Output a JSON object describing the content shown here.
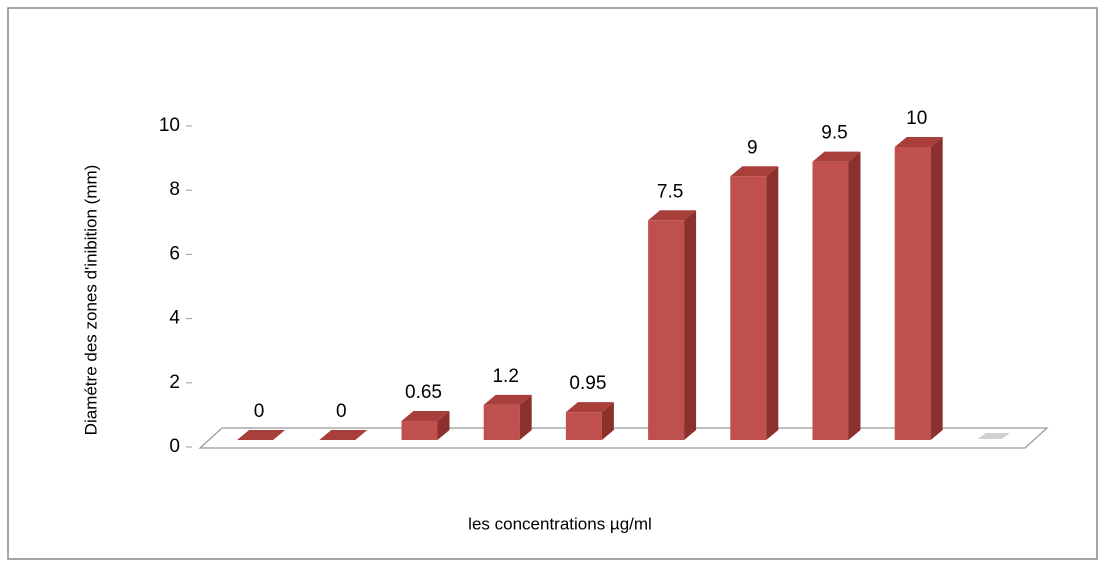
{
  "chart_data": {
    "type": "bar",
    "x_label": "les concentrations µg/ml",
    "y_label": "Diamétre des zones d'inibition (mm)",
    "categories": [
      null,
      null,
      null,
      null,
      null,
      null,
      null,
      null,
      null,
      null
    ],
    "values": [
      0,
      0,
      0.65,
      1.2,
      0.95,
      7.5,
      9,
      9.5,
      10,
      null
    ],
    "color": "#c0504d",
    "ylim": [
      0,
      10
    ],
    "yticks": [
      0,
      2,
      4,
      6,
      8,
      10
    ],
    "grid": false
  }
}
